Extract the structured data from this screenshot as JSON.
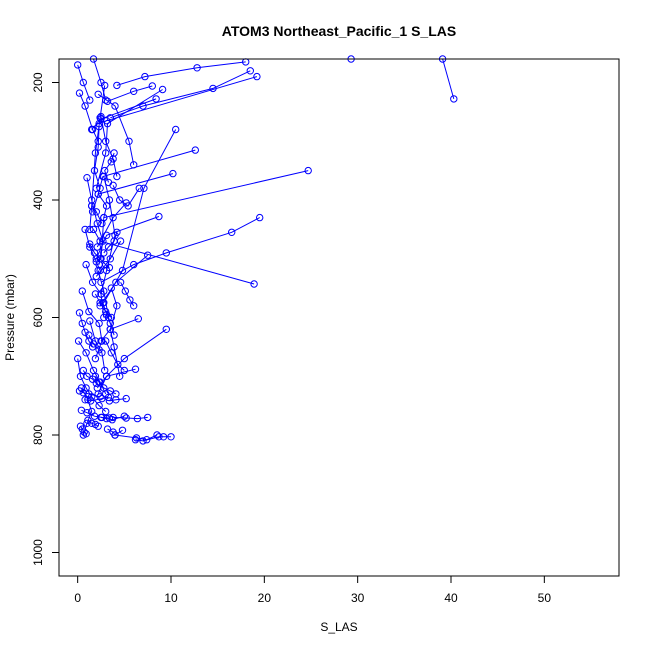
{
  "chart_data": {
    "type": "line",
    "title": "ATOM3 Northeast_Pacific_1 S_LAS",
    "xlabel": "S_LAS",
    "ylabel": "Pressure (mbar)",
    "xlim": [
      -2,
      58
    ],
    "ylim": [
      1040,
      160
    ],
    "y_reversed": true,
    "x_ticks": [
      0,
      10,
      20,
      30,
      40,
      50
    ],
    "y_ticks": [
      200,
      400,
      600,
      800,
      1000
    ],
    "grid": false,
    "series_color": "#0000ff",
    "series": [
      {
        "x": [
          40.3,
          39.1,
          29.3
        ],
        "y": [
          228,
          160,
          160
        ]
      },
      {
        "x": [
          24.7,
          2.8,
          2.5
        ],
        "y": [
          350,
          430,
          500
        ]
      },
      {
        "x": [
          18.9,
          2.4,
          1.7
        ],
        "y": [
          543,
          470,
          450
        ]
      },
      {
        "x": [
          10.2,
          2.2,
          3.1,
          2.8
        ],
        "y": [
          355,
          390,
          410,
          430
        ]
      },
      {
        "x": [
          9.5,
          5.0,
          3.1,
          2.1
        ],
        "y": [
          620,
          670,
          700,
          720
        ]
      },
      {
        "x": [
          19.2,
          3.1,
          2.3
        ],
        "y": [
          190,
          265,
          270
        ]
      },
      {
        "x": [
          12.6,
          2.7,
          2.2
        ],
        "y": [
          315,
          360,
          390
        ]
      },
      {
        "x": [
          8.7,
          3.1,
          2.0
        ],
        "y": [
          428,
          460,
          500
        ]
      },
      {
        "x": [
          8.4,
          2.5,
          1.5
        ],
        "y": [
          228,
          262,
          280
        ]
      },
      {
        "x": [
          9.1,
          3.2,
          3.0,
          2.0
        ],
        "y": [
          212,
          270,
          320,
          380
        ]
      },
      {
        "x": [
          6.5,
          3.5,
          2.5
        ],
        "y": [
          602,
          620,
          640
        ]
      },
      {
        "x": [
          7.5,
          4.1,
          2.4
        ],
        "y": [
          494,
          540,
          580
        ]
      },
      {
        "x": [
          6.2,
          3.1,
          2.2
        ],
        "y": [
          688,
          700,
          730
        ]
      },
      {
        "x": [
          5.2,
          3.8,
          2.1
        ],
        "y": [
          405,
          430,
          480
        ]
      },
      {
        "x": [
          4.6,
          3.5,
          2.0
        ],
        "y": [
          470,
          500,
          530
        ]
      },
      {
        "x": [
          2.9,
          2.4,
          1.9,
          1.5,
          1.3
        ],
        "y": [
          205,
          260,
          320,
          410,
          450
        ]
      },
      {
        "x": [
          2.3,
          2.2,
          1.8,
          2.4,
          1.6
        ],
        "y": [
          275,
          310,
          350,
          380,
          420
        ]
      },
      {
        "x": [
          1.0,
          1.5,
          2.1,
          2.7,
          2.3
        ],
        "y": [
          362,
          400,
          440,
          470,
          510
        ]
      },
      {
        "x": [
          0.9,
          1.6,
          2.5,
          2.8
        ],
        "y": [
          510,
          540,
          560,
          600
        ]
      },
      {
        "x": [
          0.5,
          1.2,
          2.3,
          2.6,
          1.9
        ],
        "y": [
          555,
          590,
          610,
          640,
          670
        ]
      },
      {
        "x": [
          0.1,
          0.9,
          1.7,
          2.4,
          3.0
        ],
        "y": [
          640,
          660,
          690,
          710,
          730
        ]
      },
      {
        "x": [
          0.4,
          1.1,
          1.5,
          1.0,
          0.6
        ],
        "y": [
          720,
          740,
          760,
          780,
          800
        ]
      },
      {
        "x": [
          2.8,
          3.4,
          4.0,
          3.1,
          2.5
        ],
        "y": [
          360,
          400,
          460,
          520,
          560
        ]
      },
      {
        "x": [
          3.6,
          4.2,
          3.5,
          3.9,
          4.5
        ],
        "y": [
          550,
          580,
          620,
          650,
          700
        ]
      },
      {
        "x": [
          3.9,
          3.6,
          2.9,
          3.3
        ],
        "y": [
          320,
          335,
          350,
          370
        ]
      },
      {
        "x": [
          2.5,
          3.0,
          3.8,
          4.2
        ],
        "y": [
          258,
          300,
          330,
          360
        ]
      },
      {
        "x": [
          1.3,
          1.9,
          2.6,
          2.9
        ],
        "y": [
          606,
          640,
          660,
          690
        ]
      },
      {
        "x": [
          2.2,
          2.8,
          3.3,
          3.9
        ],
        "y": [
          520,
          555,
          600,
          630
        ]
      },
      {
        "x": [
          0.8,
          1.3,
          2.0,
          2.4
        ],
        "y": [
          450,
          480,
          505,
          520
        ]
      },
      {
        "x": [
          1.7,
          2.5,
          3.0
        ],
        "y": [
          160,
          200,
          230
        ]
      },
      {
        "x": [
          0.0,
          0.6,
          1.3
        ],
        "y": [
          170,
          200,
          230
        ]
      },
      {
        "x": [
          0.2,
          0.8,
          1.6,
          2.2
        ],
        "y": [
          218,
          240,
          280,
          300
        ]
      },
      {
        "x": [
          3.5,
          7.0,
          14.5,
          18.5
        ],
        "y": [
          260,
          240,
          210,
          180
        ]
      },
      {
        "x": [
          2.2,
          4.0,
          5.5,
          6.0
        ],
        "y": [
          220,
          240,
          300,
          340
        ]
      },
      {
        "x": [
          3.2,
          6.0,
          8.0
        ],
        "y": [
          232,
          215,
          206
        ]
      },
      {
        "x": [
          0.0,
          0.3,
          0.9,
          1.5,
          2.3,
          3.0
        ],
        "y": [
          670,
          700,
          720,
          735,
          750,
          760
        ]
      },
      {
        "x": [
          0.4,
          1.0,
          1.8,
          2.6,
          3.4
        ],
        "y": [
          758,
          762,
          768,
          770,
          771
        ]
      },
      {
        "x": [
          3.8,
          5.2,
          6.4,
          7.5
        ],
        "y": [
          770,
          771,
          772,
          770
        ]
      },
      {
        "x": [
          4.0,
          6.3,
          7.4,
          8.5
        ],
        "y": [
          800,
          805,
          808,
          800
        ]
      },
      {
        "x": [
          6.2,
          7.0,
          8.7,
          9.2,
          10.0
        ],
        "y": [
          808,
          810,
          803,
          803,
          803
        ]
      },
      {
        "x": [
          3.2,
          3.8,
          4.0,
          4.8
        ],
        "y": [
          790,
          795,
          800,
          792
        ]
      },
      {
        "x": [
          0.3,
          0.5,
          0.7,
          0.9
        ],
        "y": [
          785,
          790,
          795,
          798
        ]
      },
      {
        "x": [
          1.1,
          1.5,
          1.9,
          2.2
        ],
        "y": [
          775,
          780,
          782,
          785
        ]
      },
      {
        "x": [
          2.5,
          3.1,
          3.7,
          5.0
        ],
        "y": [
          770,
          772,
          774,
          768
        ]
      },
      {
        "x": [
          0.8,
          1.4,
          2.6,
          3.3
        ],
        "y": [
          740,
          742,
          738,
          736
        ]
      },
      {
        "x": [
          0.2,
          0.6,
          1.2,
          2.4
        ],
        "y": [
          725,
          728,
          730,
          735
        ]
      },
      {
        "x": [
          5.2,
          4.1,
          3.4
        ],
        "y": [
          738,
          740,
          742
        ]
      },
      {
        "x": [
          1.9,
          2.3,
          2.8,
          3.5,
          4.1
        ],
        "y": [
          700,
          710,
          720,
          725,
          730
        ]
      },
      {
        "x": [
          0.6,
          1.0,
          1.6,
          2.0
        ],
        "y": [
          690,
          700,
          705,
          712
        ]
      },
      {
        "x": [
          3.0,
          3.6,
          4.3,
          5.0
        ],
        "y": [
          640,
          660,
          680,
          690
        ]
      },
      {
        "x": [
          4.6,
          5.1,
          5.6,
          6.0
        ],
        "y": [
          540,
          555,
          570,
          580
        ]
      },
      {
        "x": [
          1.5,
          2.0,
          2.6
        ],
        "y": [
          410,
          420,
          440
        ]
      },
      {
        "x": [
          1.9,
          2.4,
          3.0,
          3.6
        ],
        "y": [
          560,
          575,
          590,
          600
        ]
      },
      {
        "x": [
          2.7,
          3.1,
          3.5
        ],
        "y": [
          575,
          595,
          610
        ]
      },
      {
        "x": [
          4.2,
          3.9,
          3.3,
          2.8
        ],
        "y": [
          455,
          470,
          480,
          490
        ]
      },
      {
        "x": [
          1.2,
          1.7,
          2.3
        ],
        "y": [
          630,
          645,
          655
        ]
      },
      {
        "x": [
          0.2,
          0.5,
          0.8,
          1.2,
          1.6
        ],
        "y": [
          592,
          610,
          625,
          640,
          650
        ]
      },
      {
        "x": [
          3.8,
          4.5,
          5.4,
          6.6
        ],
        "y": [
          375,
          400,
          410,
          380
        ]
      },
      {
        "x": [
          1.3,
          1.8,
          2.4,
          3.0,
          3.4
        ],
        "y": [
          475,
          490,
          500,
          510,
          515
        ]
      },
      {
        "x": [
          2.5,
          6.0,
          9.5,
          16.5,
          19.5
        ],
        "y": [
          540,
          510,
          490,
          455,
          430
        ]
      },
      {
        "x": [
          4.2,
          7.2,
          12.8,
          18.0
        ],
        "y": [
          205,
          190,
          175,
          165
        ]
      },
      {
        "x": [
          2.8,
          4.8,
          7.1,
          10.5
        ],
        "y": [
          575,
          520,
          380,
          280
        ]
      }
    ]
  }
}
